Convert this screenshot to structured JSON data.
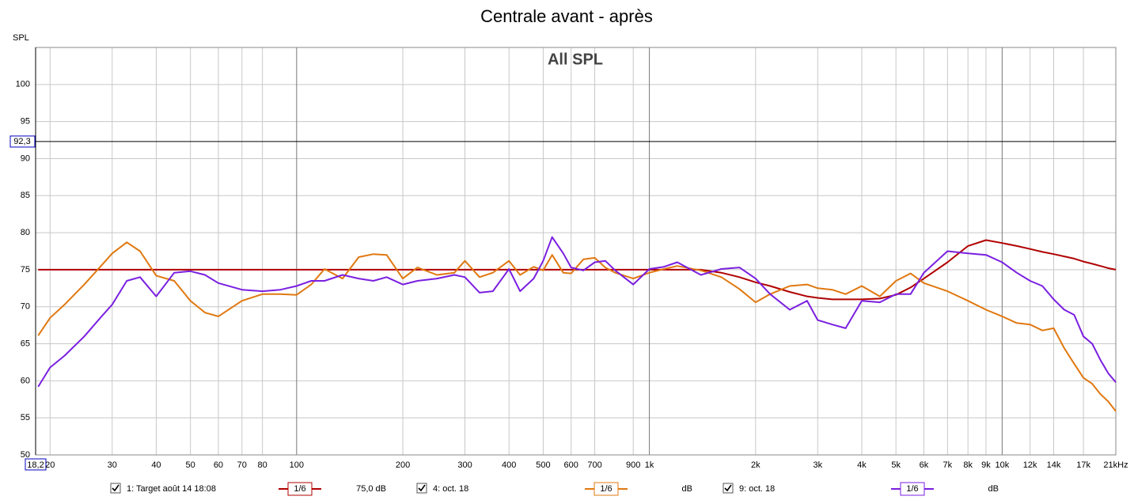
{
  "chart_data": {
    "type": "line",
    "title": "Centrale avant - après",
    "annotation": "All SPL",
    "y_label": "SPL",
    "xscale": "log",
    "grid": true,
    "xlim": [
      18.2,
      21000
    ],
    "ylim": [
      50,
      105
    ],
    "yticks": [
      50,
      55,
      60,
      65,
      70,
      75,
      80,
      85,
      90,
      95,
      100
    ],
    "xticks": [
      {
        "value": 18.2,
        "label": "18,2"
      },
      20,
      30,
      40,
      50,
      60,
      70,
      80,
      100,
      200,
      300,
      400,
      500,
      600,
      700,
      900,
      {
        "value": 1000,
        "label": "1k"
      },
      {
        "value": 2000,
        "label": "2k"
      },
      {
        "value": 3000,
        "label": "3k"
      },
      {
        "value": 4000,
        "label": "4k"
      },
      {
        "value": 5000,
        "label": "5k"
      },
      {
        "value": 6000,
        "label": "6k"
      },
      {
        "value": 7000,
        "label": "7k"
      },
      {
        "value": 8000,
        "label": "8k"
      },
      {
        "value": 9000,
        "label": "9k"
      },
      {
        "value": 10000,
        "label": "10k"
      },
      {
        "value": 12000,
        "label": "12k"
      },
      {
        "value": 14000,
        "label": "14k"
      },
      {
        "value": 17000,
        "label": "17k"
      },
      {
        "value": 21000,
        "label": "21kHz"
      }
    ],
    "cursor": {
      "value": 92.3,
      "label": "92,3"
    },
    "x": [
      18.5,
      20,
      22,
      25,
      28,
      30,
      33,
      36,
      40,
      45,
      50,
      55,
      60,
      70,
      80,
      90,
      100,
      110,
      120,
      135,
      150,
      165,
      180,
      200,
      220,
      250,
      280,
      300,
      330,
      360,
      400,
      430,
      470,
      500,
      530,
      570,
      600,
      650,
      700,
      750,
      800,
      900,
      1000,
      1100,
      1200,
      1400,
      1600,
      1800,
      2000,
      2200,
      2500,
      2800,
      3000,
      3300,
      3600,
      4000,
      4500,
      5000,
      5500,
      6000,
      7000,
      8000,
      9000,
      10000,
      11000,
      12000,
      13000,
      14000,
      15000,
      16000,
      17000,
      18000,
      19000,
      20000,
      21000
    ],
    "series": [
      {
        "name": "1: Target août 14 18:08",
        "color": "#b00000",
        "smoothing": "1/6",
        "level_label": "75,0 dB",
        "values": [
          75,
          75,
          75,
          75,
          75,
          75,
          75,
          75,
          75,
          75,
          75,
          75,
          75,
          75,
          75,
          75,
          75,
          75,
          75,
          75,
          75,
          75,
          75,
          75,
          75,
          75,
          75,
          75,
          75,
          75,
          75,
          75,
          75,
          75,
          75,
          75,
          75,
          75,
          75,
          75,
          75,
          75,
          75,
          75,
          75,
          75,
          74.6,
          74,
          73.3,
          72.8,
          72,
          71.4,
          71.2,
          71,
          71,
          71,
          71.1,
          71.6,
          72.6,
          73.8,
          76,
          78.2,
          79,
          78.6,
          78.2,
          77.8,
          77.4,
          77.1,
          76.8,
          76.5,
          76.1,
          75.8,
          75.5,
          75.2,
          75
        ]
      },
      {
        "name": "4: oct. 18",
        "color": "#e07810",
        "smoothing": "1/6",
        "level_label": "dB",
        "values": [
          66.1,
          68.5,
          70.3,
          73,
          75.6,
          77.2,
          78.7,
          77.5,
          74.2,
          73.5,
          70.8,
          69.2,
          68.7,
          70.8,
          71.7,
          71.7,
          71.6,
          73,
          75.1,
          73.8,
          76.7,
          77.1,
          77,
          73.8,
          75.3,
          74.3,
          74.6,
          76.2,
          74,
          74.6,
          76.2,
          74.3,
          75.4,
          74.9,
          77,
          74.6,
          74.5,
          76.4,
          76.6,
          75.3,
          74.6,
          73.8,
          74.6,
          75.1,
          75.5,
          74.9,
          74,
          72.4,
          70.6,
          71.7,
          72.8,
          73,
          72.5,
          72.3,
          71.7,
          72.8,
          71.4,
          73.5,
          74.5,
          73.2,
          72.1,
          70.8,
          69.6,
          68.7,
          67.8,
          67.6,
          66.8,
          67.1,
          64.4,
          62.3,
          60.4,
          59.6,
          58.2,
          57.2,
          55.9
        ]
      },
      {
        "name": "9: oct. 18",
        "color": "#7a1fe0",
        "smoothing": "1/6",
        "level_label": "dB",
        "values": [
          59.2,
          61.8,
          63.4,
          66,
          68.7,
          70.3,
          73.5,
          74,
          71.4,
          74.6,
          74.8,
          74.3,
          73.2,
          72.3,
          72.1,
          72.3,
          72.8,
          73.5,
          73.5,
          74.3,
          73.8,
          73.5,
          74,
          73,
          73.5,
          73.8,
          74.3,
          74,
          71.9,
          72.1,
          75.1,
          72.1,
          73.8,
          76.2,
          79.4,
          77.2,
          75.3,
          74.9,
          76,
          76.2,
          74.9,
          73,
          75.1,
          75.4,
          76,
          74.3,
          75.1,
          75.3,
          73.8,
          71.7,
          69.6,
          70.8,
          68.2,
          67.6,
          67.1,
          70.8,
          70.6,
          71.7,
          71.7,
          74.6,
          77.5,
          77.2,
          77,
          76,
          74.6,
          73.5,
          72.8,
          71,
          69.6,
          68.9,
          66,
          65,
          62.8,
          61,
          59.8
        ]
      }
    ]
  }
}
